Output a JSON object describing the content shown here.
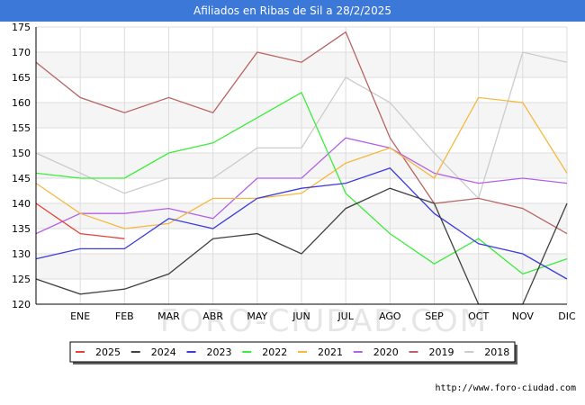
{
  "title": "Afiliados en Ribas de Sil a 28/2/2025",
  "footer_url": "http://www.foro-ciudad.com",
  "watermark": "FORO-CIUDAD.COM",
  "chart_data": {
    "type": "line",
    "title": "Afiliados en Ribas de Sil a 28/2/2025",
    "xlabel": "",
    "ylabel": "",
    "x_tick_labels": [
      "",
      "ENE",
      "FEB",
      "MAR",
      "ABR",
      "MAY",
      "JUN",
      "JUL",
      "AGO",
      "SEP",
      "OCT",
      "NOV",
      "DIC"
    ],
    "ylim": [
      120,
      175
    ],
    "y_ticks": [
      120,
      125,
      130,
      135,
      140,
      145,
      150,
      155,
      160,
      165,
      170,
      175
    ],
    "grid": true,
    "legend_position": "bottom",
    "series": [
      {
        "name": "2025",
        "color": "#e8403a",
        "values": [
          140,
          134,
          133
        ]
      },
      {
        "name": "2024",
        "color": "#404040",
        "values": [
          125,
          122,
          123,
          126,
          133,
          134,
          130,
          139,
          143,
          140,
          120,
          120,
          140
        ]
      },
      {
        "name": "2023",
        "color": "#3c3cdc",
        "values": [
          129,
          131,
          131,
          137,
          135,
          141,
          143,
          144,
          147,
          138,
          132,
          130,
          125
        ]
      },
      {
        "name": "2022",
        "color": "#3cee3c",
        "values": [
          146,
          145,
          145,
          150,
          152,
          157,
          162,
          142,
          134,
          128,
          133,
          126,
          129
        ]
      },
      {
        "name": "2021",
        "color": "#f5b940",
        "values": [
          144,
          138,
          135,
          136,
          141,
          141,
          142,
          148,
          151,
          145,
          161,
          160,
          146
        ]
      },
      {
        "name": "2020",
        "color": "#b460e6",
        "values": [
          134,
          138,
          138,
          139,
          137,
          145,
          145,
          153,
          151,
          146,
          144,
          145,
          144
        ]
      },
      {
        "name": "2019",
        "color": "#b86464",
        "values": [
          168,
          161,
          158,
          161,
          158,
          170,
          168,
          174,
          153,
          140,
          141,
          139,
          134
        ]
      },
      {
        "name": "2018",
        "color": "#cccccc",
        "values": [
          150,
          146,
          142,
          145,
          145,
          151,
          151,
          165,
          160,
          150,
          141,
          170,
          168
        ]
      }
    ]
  }
}
